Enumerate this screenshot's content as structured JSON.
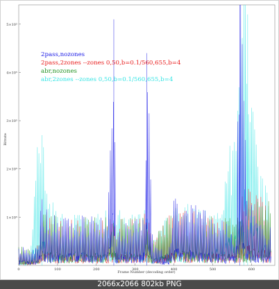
{
  "caption": "2066x2066 802kb PNG",
  "colors": {
    "blue": "#1a1ae6",
    "red": "#e81c1c",
    "green": "#1d8f1d",
    "cyan": "#36e4e4",
    "purple": "#6a4ab8"
  },
  "chart_data": {
    "type": "line",
    "title": "",
    "xlabel": "Frame Number (decoding order)",
    "ylabel": "Bitrate",
    "xlim": [
      0,
      660
    ],
    "ylim": [
      0,
      540000
    ],
    "x_ticks": [
      0,
      100,
      200,
      300,
      400,
      500,
      600
    ],
    "y_ticks": [
      {
        "value": 100000,
        "label": "1×10⁵"
      },
      {
        "value": 200000,
        "label": "2×10⁵"
      },
      {
        "value": 300000,
        "label": "3×10⁵"
      },
      {
        "value": 400000,
        "label": "4×10⁵"
      },
      {
        "value": 500000,
        "label": "5×10⁵"
      }
    ],
    "legend_position": "top-left",
    "series": [
      {
        "name": "2pass,nozones",
        "color": "#1a1ae6",
        "x": [
          0,
          15,
          30,
          50,
          58,
          70,
          100,
          150,
          200,
          230,
          245,
          250,
          300,
          325,
          330,
          345,
          385,
          400,
          500,
          560,
          570,
          590,
          640,
          650
        ],
        "y": [
          30000,
          40000,
          35000,
          40000,
          120000,
          100000,
          90000,
          85000,
          90000,
          100000,
          510000,
          60000,
          85000,
          90000,
          440000,
          40000,
          20000,
          120000,
          95000,
          60000,
          540000,
          120000,
          60000,
          100000
        ]
      },
      {
        "name": "2pass,2zones --zones 0,50,b=0.1/560,655,b=4",
        "color": "#e81c1c",
        "x": [
          0,
          15,
          30,
          50,
          58,
          100,
          200,
          245,
          300,
          330,
          345,
          400,
          500,
          560,
          575,
          600,
          650
        ],
        "y": [
          25000,
          20000,
          15000,
          40000,
          90000,
          80000,
          80000,
          90000,
          80000,
          100000,
          40000,
          100000,
          90000,
          70000,
          150000,
          140000,
          100000
        ]
      },
      {
        "name": "abr,nozones",
        "color": "#1d8f1d",
        "x": [
          0,
          15,
          30,
          50,
          58,
          100,
          200,
          245,
          300,
          330,
          345,
          400,
          500,
          560,
          600,
          650
        ],
        "y": [
          35000,
          30000,
          30000,
          40000,
          100000,
          85000,
          85000,
          90000,
          85000,
          95000,
          45000,
          100000,
          90000,
          80000,
          110000,
          120000
        ]
      },
      {
        "name": "abr,2zones --zones 0,50,b=0.1/560,655,b=4",
        "color": "#36e4e4",
        "x": [
          0,
          15,
          30,
          45,
          60,
          70,
          100,
          200,
          245,
          300,
          330,
          345,
          400,
          500,
          560,
          580,
          590,
          620,
          650
        ],
        "y": [
          15000,
          10000,
          12000,
          200000,
          270000,
          130000,
          95000,
          90000,
          100000,
          90000,
          100000,
          40000,
          110000,
          100000,
          250000,
          540000,
          520000,
          200000,
          90000
        ]
      }
    ]
  }
}
